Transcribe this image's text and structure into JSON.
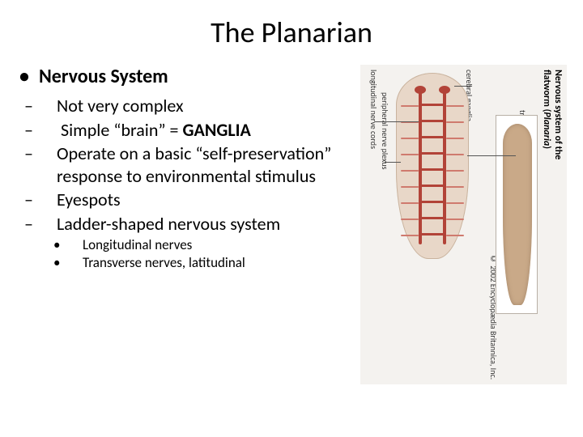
{
  "title": "The Planarian",
  "heading": "Nervous System",
  "bullets2": [
    {
      "text": "Not very complex"
    },
    {
      "text_pre": "Simple “brain” = ",
      "bold": "GANGLIA"
    },
    {
      "text": "Operate on a basic “self-preservation” response to environmental stimulus"
    },
    {
      "text": "Eyespots"
    },
    {
      "text": "Ladder-shaped nervous system"
    }
  ],
  "bullets3": [
    "Longitudinal nerves",
    "Transverse nerves, latitudinal"
  ],
  "diagram": {
    "caption_line1": "Nervous system of the",
    "caption_line2_pre": "flatworm (",
    "caption_line2_ital": "Planaria",
    "caption_line2_post": ")",
    "labels": {
      "cerebral_ganglia": "cerebral ganglia",
      "longitudinal_nerve_cords": "longitudinal nerve cords",
      "peripheral_nerve_plexus": "peripheral nerve plexus",
      "transverse_commissure": "transverse commissure"
    },
    "copyright": "© 2002 Encyclopædia Britannica, Inc.",
    "colors": {
      "bg": "#f4f2ef",
      "worm_fill": "#e8d7c8",
      "nerve": "#b24338",
      "plexus": "#cf7a6e",
      "body_right": "#c9a988"
    },
    "commissure_tops": [
      38,
      58,
      78,
      98,
      118,
      138,
      158,
      178,
      198
    ],
    "plexus_rows": [
      40,
      60,
      80,
      100,
      120,
      140,
      160,
      180,
      200
    ]
  }
}
